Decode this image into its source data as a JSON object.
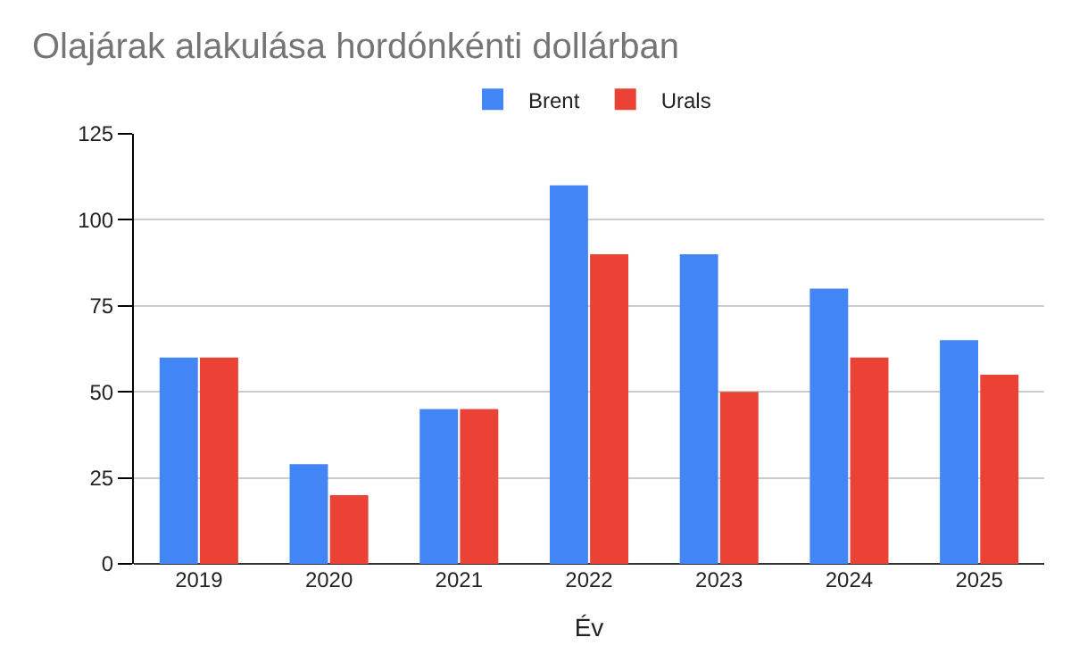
{
  "chart_data": {
    "type": "bar",
    "title": "Olajárak alakulása hordónkénti dollárban",
    "xlabel": "Év",
    "categories": [
      "2019",
      "2020",
      "2021",
      "2022",
      "2023",
      "2024",
      "2025"
    ],
    "series": [
      {
        "name": "Brent",
        "color": "#4285f4",
        "values": [
          60,
          29,
          45,
          110,
          90,
          80,
          65
        ]
      },
      {
        "name": "Urals",
        "color": "#ea4335",
        "values": [
          60,
          20,
          45,
          90,
          50,
          60,
          55
        ]
      }
    ],
    "ylim": [
      0,
      125
    ],
    "yticks": [
      0,
      25,
      50,
      75,
      100,
      125
    ],
    "grid": "y",
    "legend": "top"
  }
}
